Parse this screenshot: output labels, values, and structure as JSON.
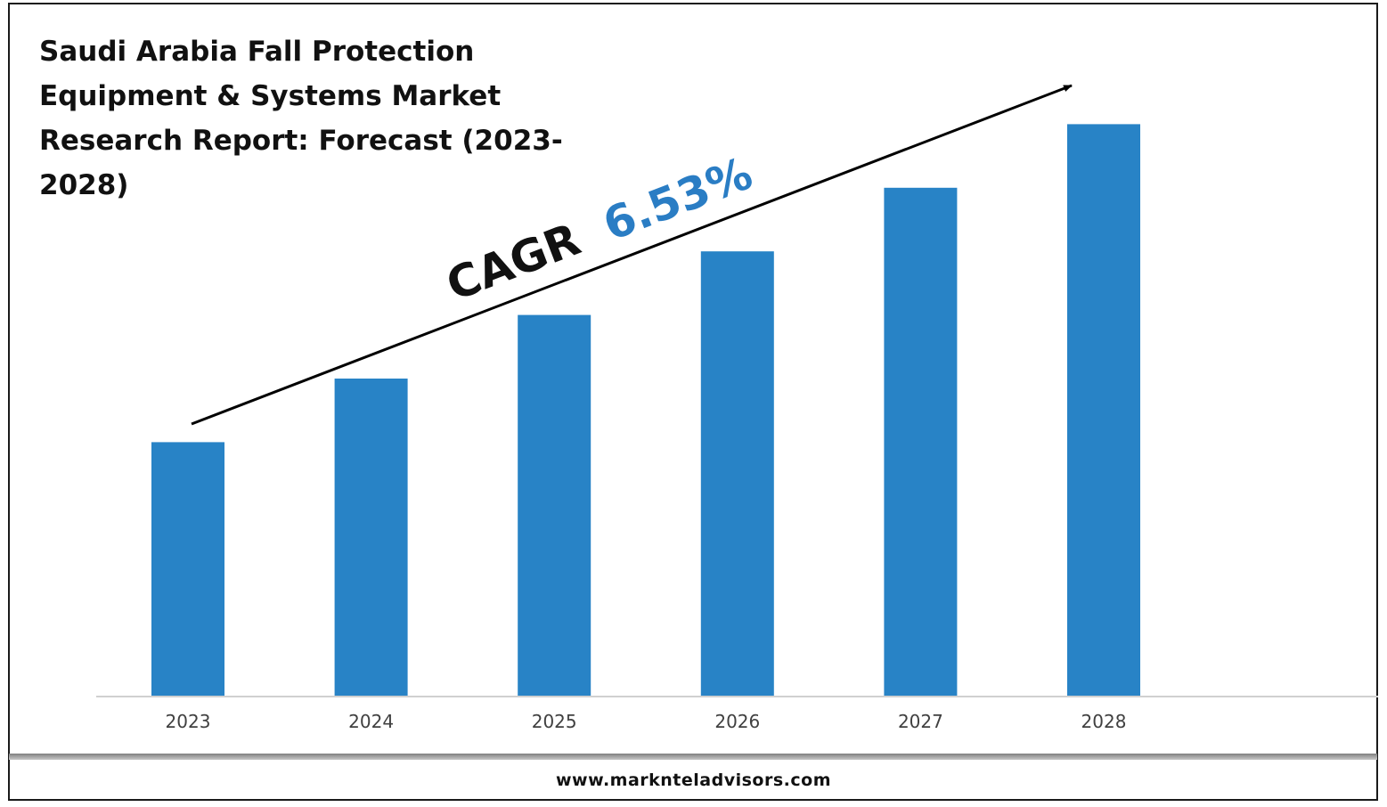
{
  "title": "Saudi Arabia Fall Protection Equipment & Systems Market Research Report: Forecast (2023-2028)",
  "annotation": {
    "label": "CAGR",
    "value": "6.53%",
    "label_color": "#111111",
    "value_color": "#2a7dc4"
  },
  "footer": {
    "url": "www.marknteladvisors.com"
  },
  "colors": {
    "bar": "#2883c6",
    "axis": "#d0d0d0",
    "arrow": "#000000"
  },
  "chart_data": {
    "type": "bar",
    "categories": [
      "2023",
      "2024",
      "2025",
      "2026",
      "2027",
      "2028"
    ],
    "values": [
      1.0,
      1.25,
      1.5,
      1.75,
      2.0,
      2.25
    ],
    "ylim": [
      0,
      2.5
    ],
    "xlabel": "",
    "ylabel": "",
    "grid": false,
    "legend": "none",
    "note": ""
  }
}
